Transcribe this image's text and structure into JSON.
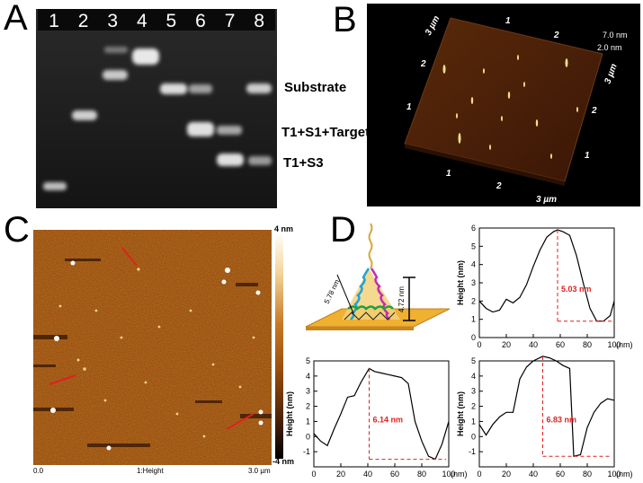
{
  "panels": {
    "a": {
      "letter": "A",
      "lanes": [
        "1",
        "2",
        "3",
        "4",
        "5",
        "6",
        "7",
        "8"
      ],
      "band_labels": [
        "Substrate",
        "T1+S1+Target",
        "T1+S3"
      ]
    },
    "b": {
      "letter": "B",
      "scale_labels": [
        "7.0 nm",
        "2.0 nm"
      ],
      "axis_top": [
        "3 µm",
        "1",
        "2"
      ],
      "axis_right": [
        "3 µm",
        "2",
        "1"
      ],
      "axis_left": [
        "2",
        "1"
      ],
      "axis_bottom": [
        "1",
        "2",
        "3 µm"
      ]
    },
    "c": {
      "letter": "C",
      "colorbar_top": "4 nm",
      "colorbar_bottom": "-4 nm",
      "x_start": "0.0",
      "x_center": "1:Height",
      "x_end": "3.0 µm"
    },
    "d": {
      "letter": "D",
      "diagram_labels": {
        "edge": "5.78 nm",
        "height": "4.72 nm"
      },
      "ylabel": "Height (nm)",
      "xunit": "(nm)"
    }
  },
  "chart_data": [
    {
      "type": "line",
      "title": "",
      "xlabel": "(nm)",
      "ylabel": "Height (nm)",
      "xlim": [
        0,
        100
      ],
      "ylim": [
        0,
        6
      ],
      "xticks": [
        0,
        20,
        40,
        60,
        80,
        100
      ],
      "yticks": [
        0,
        1,
        2,
        3,
        4,
        5,
        6
      ],
      "annotation": "5.03 nm",
      "marker_x": 58,
      "x": [
        0,
        5,
        10,
        15,
        20,
        25,
        30,
        35,
        40,
        45,
        50,
        55,
        58,
        62,
        67,
        72,
        77,
        82,
        87,
        92,
        97,
        100
      ],
      "y": [
        2.0,
        1.6,
        1.4,
        1.5,
        2.1,
        1.9,
        2.2,
        2.9,
        3.9,
        4.8,
        5.5,
        5.8,
        5.9,
        5.8,
        5.6,
        4.5,
        3.0,
        1.6,
        0.9,
        0.9,
        1.2,
        2.0
      ]
    },
    {
      "type": "line",
      "title": "",
      "xlabel": "(nm)",
      "ylabel": "Height (nm)",
      "xlim": [
        0,
        100
      ],
      "ylim": [
        -2,
        5
      ],
      "xticks": [
        0,
        20,
        40,
        60,
        80,
        100
      ],
      "yticks": [
        -1,
        0,
        1,
        2,
        3,
        4,
        5
      ],
      "annotation": "6.14 nm",
      "marker_x": 41,
      "x": [
        0,
        5,
        10,
        15,
        20,
        25,
        30,
        35,
        41,
        45,
        50,
        55,
        60,
        65,
        70,
        75,
        80,
        85,
        90,
        95,
        100
      ],
      "y": [
        0.2,
        -0.3,
        -0.6,
        0.5,
        1.5,
        2.6,
        2.7,
        3.6,
        4.5,
        4.3,
        4.2,
        4.1,
        4.0,
        3.9,
        3.5,
        1.0,
        -0.3,
        -1.3,
        -1.5,
        -0.5,
        1.0
      ]
    },
    {
      "type": "line",
      "title": "",
      "xlabel": "(nm)",
      "ylabel": "Height (nm)",
      "xlim": [
        0,
        100
      ],
      "ylim": [
        -2,
        5
      ],
      "xticks": [
        0,
        20,
        40,
        60,
        80,
        100
      ],
      "yticks": [
        -1,
        0,
        1,
        2,
        3,
        4,
        5
      ],
      "annotation": "6.83 nm",
      "marker_x": 47,
      "x": [
        0,
        5,
        10,
        15,
        20,
        25,
        30,
        35,
        40,
        47,
        52,
        57,
        62,
        67,
        70,
        75,
        80,
        85,
        90,
        95,
        100
      ],
      "y": [
        0.8,
        0.1,
        0.8,
        1.3,
        1.6,
        1.6,
        3.8,
        4.6,
        5.0,
        5.3,
        5.2,
        5.0,
        4.7,
        4.5,
        -1.3,
        -1.2,
        0.6,
        1.6,
        2.2,
        2.5,
        2.4
      ]
    }
  ]
}
